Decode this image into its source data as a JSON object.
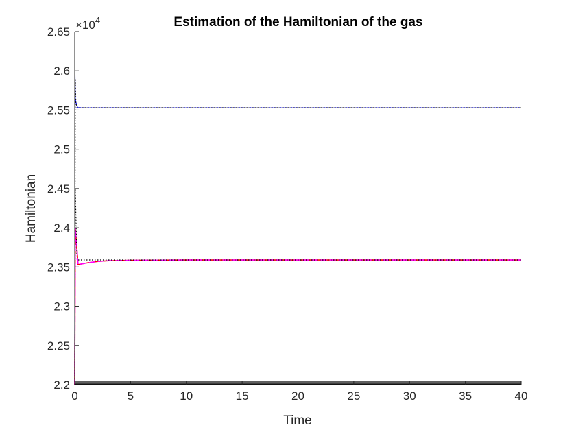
{
  "chart_data": {
    "type": "line",
    "title": "Estimation of the Hamiltonian of the gas",
    "xlabel": "Time",
    "ylabel": "Hamiltonian",
    "xlim": [
      0,
      40
    ],
    "ylim": [
      2.2,
      2.65
    ],
    "y_multiplier": {
      "base": "×10",
      "exponent": "4"
    },
    "x_ticks": [
      0,
      5,
      10,
      15,
      20,
      25,
      30,
      35,
      40
    ],
    "x_tick_labels": [
      "0",
      "5",
      "10",
      "15",
      "20",
      "25",
      "30",
      "35",
      "40"
    ],
    "y_ticks": [
      2.2,
      2.25,
      2.3,
      2.35,
      2.4,
      2.45,
      2.5,
      2.55,
      2.6,
      2.65
    ],
    "y_tick_labels": [
      "2.2",
      "2.25",
      "2.3",
      "2.35",
      "2.4",
      "2.45",
      "2.5",
      "2.55",
      "2.6",
      "2.65"
    ],
    "grid": false,
    "series": [
      {
        "name": "blue-solid",
        "color": "#0000ff",
        "dash": "",
        "width": 1.2,
        "x": [
          0,
          0.02,
          0.05,
          0.1,
          0.2,
          0.25,
          0.4
        ],
        "y": [
          2.2,
          2.6,
          2.565,
          2.56,
          2.556,
          2.553,
          2.553
        ]
      },
      {
        "name": "black-dotted-upper",
        "color": "#000000",
        "dash": "1.5,2.5",
        "width": 1.3,
        "x": [
          0,
          0.05,
          0.1,
          0.2,
          40
        ],
        "y": [
          2.2,
          2.59,
          2.56,
          2.553,
          2.553
        ]
      },
      {
        "name": "blue-dotted-upper",
        "color": "#0000cc",
        "dash": "1.5,2.5",
        "width": 1.3,
        "x": [
          0,
          0.2,
          40
        ],
        "y": [
          2.553,
          2.553,
          2.553
        ]
      },
      {
        "name": "red-solid",
        "color": "#ff0000",
        "dash": "",
        "width": 1.6,
        "x": [
          0,
          0.05,
          0.3,
          1,
          2,
          3,
          5,
          10,
          20,
          40
        ],
        "y": [
          2.2,
          2.4,
          2.353,
          2.355,
          2.357,
          2.358,
          2.3585,
          2.359,
          2.359,
          2.359
        ]
      },
      {
        "name": "magenta-dashed",
        "color": "#ff00ff",
        "dash": "9,4",
        "width": 1.6,
        "x": [
          0,
          0.05,
          0.3,
          1,
          2,
          3,
          5,
          10,
          20,
          40
        ],
        "y": [
          2.2,
          2.4,
          2.353,
          2.355,
          2.357,
          2.358,
          2.3585,
          2.359,
          2.359,
          2.359
        ]
      },
      {
        "name": "black-dotted-lower",
        "color": "#000000",
        "dash": "1.5,2.5",
        "width": 1.2,
        "x": [
          0,
          0.05,
          0.2,
          40
        ],
        "y": [
          2.2,
          2.45,
          2.359,
          2.359
        ]
      },
      {
        "name": "black-baseline-upper",
        "color": "#000000",
        "dash": "",
        "width": 1.2,
        "x": [
          0,
          40
        ],
        "y": [
          2.2035,
          2.2035
        ]
      },
      {
        "name": "black-baseline-lower",
        "color": "#000000",
        "dash": "",
        "width": 1.2,
        "x": [
          0,
          40
        ],
        "y": [
          2.201,
          2.201
        ]
      }
    ]
  }
}
